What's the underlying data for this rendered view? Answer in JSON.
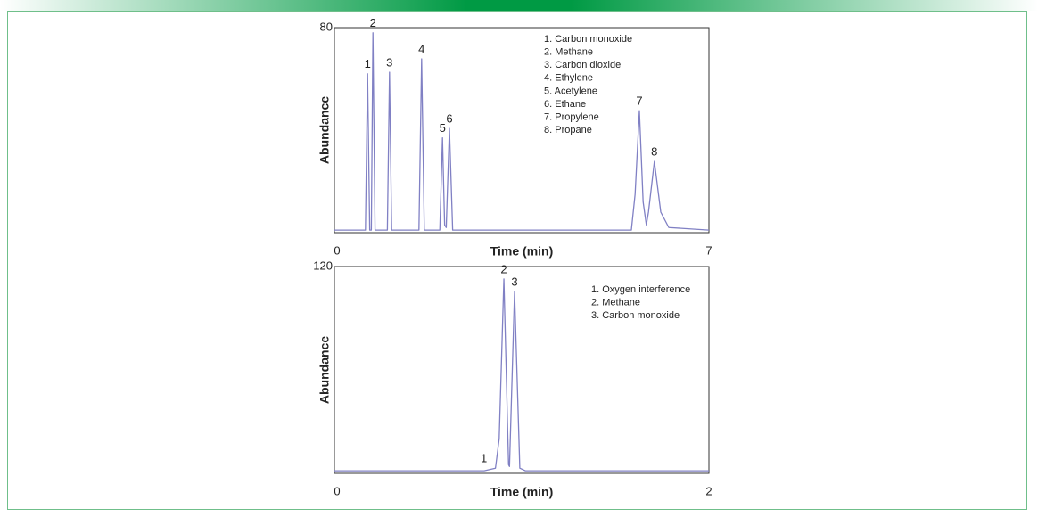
{
  "chart_data": [
    {
      "type": "line",
      "x_label": "Time (min)",
      "y_label": "Abundance",
      "xlim": [
        0,
        7
      ],
      "xticks": [
        0,
        7
      ],
      "ylim": [
        0,
        80
      ],
      "yticks": [
        80
      ],
      "x": [
        0,
        0.58,
        0.62,
        0.66,
        0.69,
        0.72,
        0.76,
        0.99,
        1.03,
        1.07,
        1.58,
        1.63,
        1.68,
        1.97,
        2.02,
        2.06,
        2.09,
        2.15,
        2.21,
        5.55,
        5.62,
        5.7,
        5.77,
        5.83,
        5.87,
        5.98,
        6.1,
        6.25,
        7
      ],
      "series": [
        {
          "color": "#8080c4",
          "values": [
            1,
            1,
            62,
            1,
            1,
            78,
            1,
            1,
            62.6,
            1,
            1,
            67.8,
            1,
            1,
            37,
            3,
            2,
            40.7,
            1,
            1,
            15,
            47.6,
            12,
            3,
            8,
            27.8,
            8,
            2,
            1
          ]
        }
      ],
      "annotations": [
        {
          "text": "1",
          "x": 0.62,
          "y": 62
        },
        {
          "text": "2",
          "x": 0.72,
          "y": 78
        },
        {
          "text": "3",
          "x": 1.03,
          "y": 62.6
        },
        {
          "text": "4",
          "x": 1.63,
          "y": 67.8
        },
        {
          "text": "5",
          "x": 2.02,
          "y": 37
        },
        {
          "text": "6",
          "x": 2.15,
          "y": 40.7
        },
        {
          "text": "7",
          "x": 5.7,
          "y": 47.6
        },
        {
          "text": "8",
          "x": 5.98,
          "y": 27.8
        }
      ],
      "legend": [
        "1.  Carbon monoxide",
        "2.  Methane",
        "3.  Carbon dioxide",
        "4.  Ethylene",
        "5.  Acetylene",
        "6.  Ethane",
        "7.  Propylene",
        "8.  Propane"
      ]
    },
    {
      "type": "line",
      "x_label": "Time (min)",
      "y_label": "Abundance",
      "xlim": [
        0,
        2
      ],
      "xticks": [
        0,
        2
      ],
      "ylim": [
        0,
        120
      ],
      "yticks": [
        120
      ],
      "x": [
        0,
        0.8,
        0.86,
        0.88,
        0.905,
        0.93,
        0.935,
        0.962,
        0.99,
        1.02,
        2
      ],
      "series": [
        {
          "color": "#8080c4",
          "values": [
            1.5,
            1.5,
            3,
            20,
            112.8,
            5,
            4,
            105.5,
            3,
            1.5,
            1.5
          ]
        }
      ],
      "annotations": [
        {
          "text": "1",
          "x": 0.86,
          "y": 3
        },
        {
          "text": "2",
          "x": 0.905,
          "y": 112.8
        },
        {
          "text": "3",
          "x": 0.962,
          "y": 105.5
        }
      ],
      "legend": [
        "1.  Oxygen interference",
        "2.  Methane",
        "3.  Carbon monoxide"
      ]
    }
  ]
}
